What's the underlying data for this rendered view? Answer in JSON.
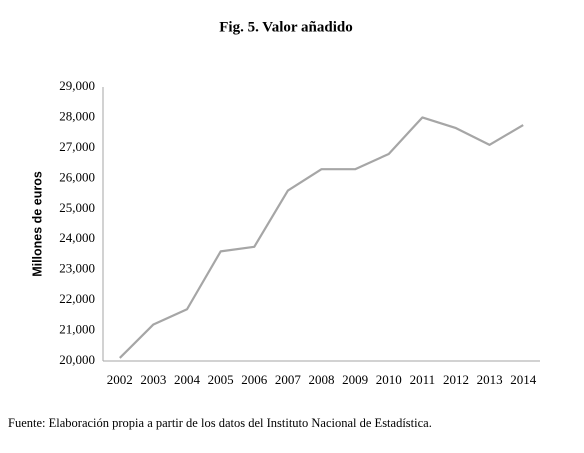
{
  "chart_data": {
    "type": "line",
    "title": "Fig. 5. Valor añadido",
    "y_label": "Millones de euros",
    "source": "Fuente: Elaboración propia a partir de los datos del Instituto Nacional de Estadística.",
    "categories": [
      "2002",
      "2003",
      "2004",
      "2005",
      "2006",
      "2007",
      "2008",
      "2009",
      "2010",
      "2011",
      "2012",
      "2013",
      "2014"
    ],
    "values": [
      20100,
      21200,
      21700,
      23600,
      23750,
      25600,
      26300,
      26300,
      26800,
      28000,
      27650,
      27100,
      27750
    ],
    "color": "#a6a6a6",
    "ylim": [
      20000,
      29000
    ],
    "yticks": [
      {
        "value": 20000,
        "label": "20,000"
      },
      {
        "value": 21000,
        "label": "21,000"
      },
      {
        "value": 22000,
        "label": "22,000"
      },
      {
        "value": 23000,
        "label": "23,000"
      },
      {
        "value": 24000,
        "label": "24,000"
      },
      {
        "value": 25000,
        "label": "25,000"
      },
      {
        "value": 26000,
        "label": "26,000"
      },
      {
        "value": 27000,
        "label": "27,000"
      },
      {
        "value": 28000,
        "label": "28,000"
      },
      {
        "value": 29000,
        "label": "29,000"
      }
    ],
    "grid": false
  }
}
